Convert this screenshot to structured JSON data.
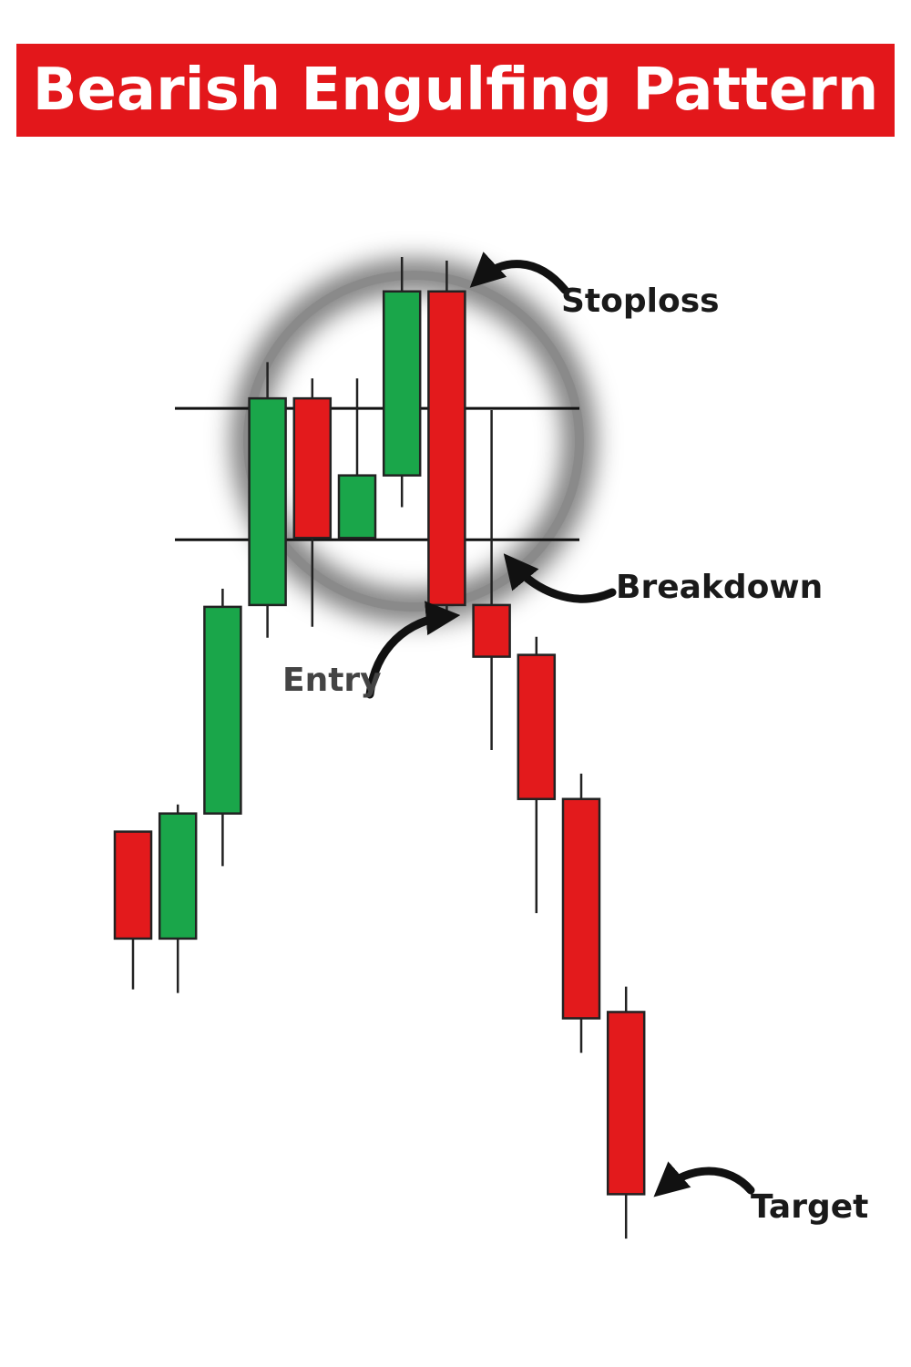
{
  "title": "Bearish Engulfing Pattern",
  "colors": {
    "banner": "#e3171b",
    "title_text": "#ffffff",
    "bull": "#1aa64a",
    "bear": "#e31a1c",
    "outline": "#222222",
    "line": "#111111",
    "label": "#1a1a1a",
    "label_entry": "#444444"
  },
  "chart_data": {
    "type": "candlestick",
    "ylim": [
      0,
      1000
    ],
    "candles": [
      {
        "direction": "bear",
        "open": 470,
        "close": 352,
        "high": 470,
        "low": 296
      },
      {
        "direction": "bull",
        "open": 352,
        "close": 490,
        "high": 500,
        "low": 292
      },
      {
        "direction": "bull",
        "open": 490,
        "close": 718,
        "high": 738,
        "low": 432
      },
      {
        "direction": "bull",
        "open": 720,
        "close": 948,
        "high": 988,
        "low": 684
      },
      {
        "direction": "bear",
        "open": 948,
        "close": 794,
        "high": 970,
        "low": 696
      },
      {
        "direction": "bull",
        "open": 794,
        "close": 863,
        "high": 970,
        "low": 794
      },
      {
        "direction": "bull",
        "open": 863,
        "close": 1066,
        "high": 1104,
        "low": 828
      },
      {
        "direction": "bear",
        "open": 1066,
        "close": 720,
        "high": 1100,
        "low": 714
      },
      {
        "direction": "bear",
        "open": 720,
        "close": 663,
        "high": 935,
        "low": 560
      },
      {
        "direction": "bear",
        "open": 665,
        "close": 506,
        "high": 685,
        "low": 380
      },
      {
        "direction": "bear",
        "open": 506,
        "close": 264,
        "high": 534,
        "low": 226
      },
      {
        "direction": "bear",
        "open": 271,
        "close": 70,
        "high": 299,
        "low": 21
      }
    ],
    "levels": [
      {
        "value": 937,
        "name": "resistance"
      },
      {
        "value": 792,
        "name": "support"
      }
    ],
    "annotations": [
      {
        "label": "Stoploss",
        "candle_index": 7
      },
      {
        "label": "Breakdown",
        "candle_index": 8
      },
      {
        "label": "Entry",
        "candle_index": 7
      },
      {
        "label": "Target",
        "candle_index": 11
      }
    ]
  }
}
